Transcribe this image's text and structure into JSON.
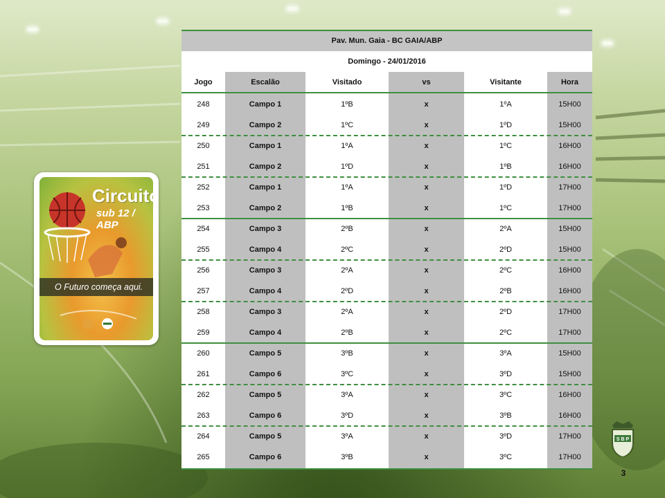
{
  "logo": {
    "title": "Circuito",
    "subtitle": "sub 12 / ABP",
    "tagline": "O Futuro começa aqui."
  },
  "schedule": {
    "venue": "Pav. Mun. Gaia - BC GAIA/ABP",
    "date": "Domingo - 24/01/2016",
    "columns": [
      "Jogo",
      "Escalão",
      "Visitado",
      "vs",
      "Visitante",
      "Hora"
    ],
    "rows": [
      [
        "248",
        "Campo 1",
        "1ºB",
        "x",
        "1ºA",
        "15H00"
      ],
      [
        "249",
        "Campo 2",
        "1ºC",
        "x",
        "1ºD",
        "15H00"
      ],
      [
        "250",
        "Campo 1",
        "1ºA",
        "x",
        "1ºC",
        "16H00"
      ],
      [
        "251",
        "Campo 2",
        "1ºD",
        "x",
        "1ºB",
        "16H00"
      ],
      [
        "252",
        "Campo 1",
        "1ºA",
        "x",
        "1ºD",
        "17H00"
      ],
      [
        "253",
        "Campo 2",
        "1ºB",
        "x",
        "1ºC",
        "17H00"
      ],
      [
        "254",
        "Campo 3",
        "2ºB",
        "x",
        "2ºA",
        "15H00"
      ],
      [
        "255",
        "Campo 4",
        "2ºC",
        "x",
        "2ºD",
        "15H00"
      ],
      [
        "256",
        "Campo 3",
        "2ºA",
        "x",
        "2ºC",
        "16H00"
      ],
      [
        "257",
        "Campo 4",
        "2ºD",
        "x",
        "2ºB",
        "16H00"
      ],
      [
        "258",
        "Campo 3",
        "2ºA",
        "x",
        "2ºD",
        "17H00"
      ],
      [
        "259",
        "Campo 4",
        "2ºB",
        "x",
        "2ºC",
        "17H00"
      ],
      [
        "260",
        "Campo 5",
        "3ºB",
        "x",
        "3ºA",
        "15H00"
      ],
      [
        "261",
        "Campo 6",
        "3ºC",
        "x",
        "3ºD",
        "15H00"
      ],
      [
        "262",
        "Campo 5",
        "3ºA",
        "x",
        "3ºC",
        "16H00"
      ],
      [
        "263",
        "Campo 6",
        "3ºD",
        "x",
        "3ºB",
        "16H00"
      ],
      [
        "264",
        "Campo 5",
        "3ºA",
        "x",
        "3ºD",
        "17H00"
      ],
      [
        "265",
        "Campo 6",
        "3ºB",
        "x",
        "3ºC",
        "17H00"
      ]
    ]
  },
  "crest_text": "S B P",
  "page_number": "3",
  "colors": {
    "accent_green": "#3e8e3e",
    "header_gray": "#c4c4c4",
    "column_gray": "#bfbfbf"
  }
}
